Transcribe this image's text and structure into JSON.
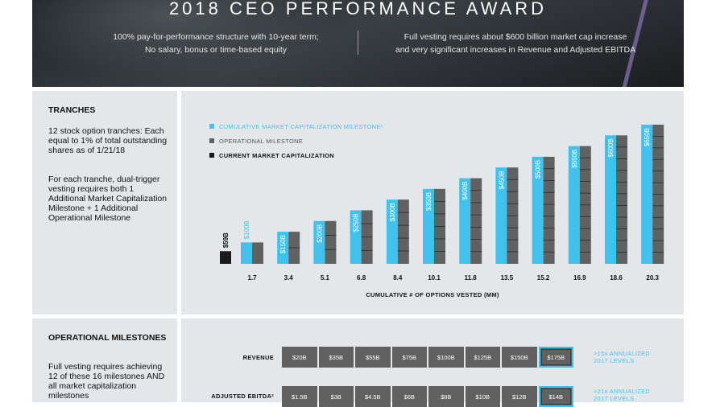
{
  "header": {
    "title": "2018 CEO PERFORMANCE AWARD",
    "left_lines": [
      "100% pay-for-performance structure with 10-year term;",
      "No salary, bonus or time-based equity"
    ],
    "right_lines": [
      "Full vesting requires about $600 billion market cap increase",
      "and very significant increases in Revenue and Adjusted EBITDA"
    ]
  },
  "tranches": {
    "title": "TRANCHES",
    "text1": "12 stock option tranches: Each equal to 1% of total outstanding shares as of 1/21/18",
    "text2": "For each tranche, dual-trigger vesting requires both 1 Additional Market Capitalization Milestone + 1 Additional Operational Milestone"
  },
  "operational": {
    "title": "OPERATIONAL MILESTONES",
    "text": "Full vesting requires achieving 12 of these 16 milestones AND all market capitalization milestones"
  },
  "colors": {
    "cyan": "#3fc3ee",
    "gray": "#616161",
    "black": "#1a1a1a",
    "panel": "#e4e7e9"
  },
  "chart_data": [
    {
      "type": "bar",
      "legend": [
        {
          "label": "CUMULATIVE MARKET CAPITALIZATION MILESTONE¹",
          "color": "#3fc3ee"
        },
        {
          "label": "OPERATIONAL MILESTONE",
          "color": "#616161"
        },
        {
          "label": "CURRENT MARKET CAPITALIZATION",
          "color": "#1a1a1a"
        }
      ],
      "current": {
        "value": 59,
        "label": "$59B"
      },
      "categories": [
        "1.7",
        "3.4",
        "5.1",
        "6.8",
        "8.4",
        "10.1",
        "11.8",
        "13.5",
        "15.2",
        "16.9",
        "18.6",
        "20.3"
      ],
      "series": [
        {
          "name": "CUMULATIVE MARKET CAPITALIZATION MILESTONE¹",
          "values": [
            100,
            150,
            200,
            250,
            300,
            350,
            400,
            450,
            500,
            550,
            600,
            650
          ],
          "labels": [
            "$100B",
            "$150B",
            "$200B",
            "$250B",
            "$300B",
            "$350B",
            "$400B",
            "$450B",
            "$500B",
            "$550B",
            "$600B",
            "$650B"
          ]
        },
        {
          "name": "OPERATIONAL MILESTONE",
          "tranche_counts": [
            1,
            2,
            3,
            4,
            5,
            6,
            7,
            8,
            9,
            10,
            11,
            12
          ]
        }
      ],
      "xlabel": "CUMULATIVE # OF OPTIONS VESTED (MM)",
      "ylabel": "",
      "ylim": [
        0,
        650
      ]
    },
    {
      "type": "table",
      "rows": [
        {
          "label": "REVENUE",
          "values": [
            "$20B",
            "$35B",
            "$55B",
            "$75B",
            "$100B",
            "$125B",
            "$150B",
            "$175B"
          ],
          "note": [
            ">15x ANNUALIZED",
            "2017 LEVELS"
          ]
        },
        {
          "label": "ADJUSTED EBITDA²",
          "values": [
            "$1.5B",
            "$3B",
            "$4.5B",
            "$6B",
            "$8B",
            "$10B",
            "$12B",
            "$14B"
          ],
          "note": [
            ">21x ANNUALIZED",
            "2017 LEVELS"
          ]
        }
      ]
    }
  ]
}
